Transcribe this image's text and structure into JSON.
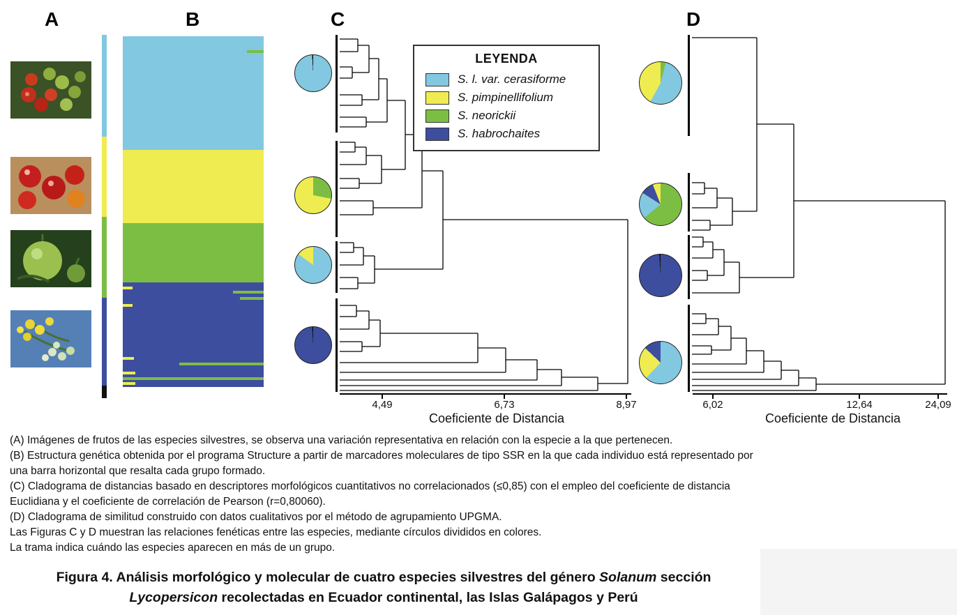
{
  "panels": {
    "a": "A",
    "b": "B",
    "c": "C",
    "d": "D"
  },
  "colors": {
    "cerasiforme": "#82C8E0",
    "pimpinellifolium": "#EFEC51",
    "neorickii": "#7CBE44",
    "habrochaites": "#3E4E9E",
    "bracket": "#111111"
  },
  "photos": [
    {
      "name": "cherry-tomatoes-photo"
    },
    {
      "name": "red-tomatoes-photo"
    },
    {
      "name": "green-fruit-photo"
    },
    {
      "name": "yellow-flowers-photo"
    }
  ],
  "strip": {
    "segments": [
      {
        "name": "cerasiforme-range",
        "color_key": "cerasiforme",
        "height_pct": 28.0
      },
      {
        "name": "pimpinellifolium-range",
        "color_key": "pimpinellifolium",
        "height_pct": 22.1
      },
      {
        "name": "neorickii-range",
        "color_key": "neorickii",
        "height_pct": 22.3
      },
      {
        "name": "habrochaites-range",
        "color_key": "habrochaites",
        "height_pct": 24.2
      },
      {
        "name": "end-cap",
        "color_key": "bracket",
        "height_pct": 3.4
      }
    ]
  },
  "legend": {
    "title": "LEYENDA",
    "entries": [
      {
        "species": "cerasiforme",
        "label": "S. l. var. cerasiforme"
      },
      {
        "species": "pimpinellifolium",
        "label": "S. pimpinellifolium"
      },
      {
        "species": "neorickii",
        "label": "S. neorickii"
      },
      {
        "species": "habrochaites",
        "label": "S. habrochaites"
      }
    ]
  },
  "chart_data": [
    {
      "type": "bar",
      "panel": "B",
      "subtype": "structure-ancestry-plot",
      "description": "Estructura genetica (programa Structure, marcadores SSR); cada individuo es una barra horizontal coloreada por grupo",
      "groups": [
        {
          "name": "S. l. var. cerasiforme",
          "color_key": "cerasiforme",
          "height_pct": 32.4
        },
        {
          "name": "S. pimpinellifolium",
          "color_key": "pimpinellifolium",
          "height_pct": 20.9
        },
        {
          "name": "S. neorickii",
          "color_key": "neorickii",
          "height_pct": 16.9
        },
        {
          "name": "S. habrochaites",
          "color_key": "habrochaites",
          "height_pct": 29.8
        }
      ],
      "admixture_marks": [
        {
          "top_pct": 4.0,
          "left_pct": 88,
          "width_pct": 12,
          "color_key": "neorickii"
        },
        {
          "top_pct": 71.3,
          "left_pct": 0,
          "width_pct": 7,
          "color_key": "pimpinellifolium"
        },
        {
          "top_pct": 72.5,
          "left_pct": 78,
          "width_pct": 22,
          "color_key": "neorickii"
        },
        {
          "top_pct": 74.3,
          "left_pct": 83,
          "width_pct": 17,
          "color_key": "neorickii"
        },
        {
          "top_pct": 76.3,
          "left_pct": 0,
          "width_pct": 7,
          "color_key": "pimpinellifolium"
        },
        {
          "top_pct": 91.5,
          "left_pct": 0,
          "width_pct": 8,
          "color_key": "pimpinellifolium"
        },
        {
          "top_pct": 93.0,
          "left_pct": 40,
          "width_pct": 60,
          "color_key": "neorickii"
        },
        {
          "top_pct": 95.6,
          "left_pct": 0,
          "width_pct": 9,
          "color_key": "pimpinellifolium"
        },
        {
          "top_pct": 97.2,
          "left_pct": 0,
          "width_pct": 100,
          "color_key": "neorickii"
        },
        {
          "top_pct": 98.7,
          "left_pct": 0,
          "width_pct": 9,
          "color_key": "pimpinellifolium"
        }
      ]
    },
    {
      "type": "dendrogram",
      "panel": "C",
      "title": "Cladograma de distancias (descriptores morfologicos cuantitativos)",
      "xlabel": "Coeficiente de Distancia",
      "ticks": [
        "4,49",
        "6,73",
        "8,97"
      ],
      "axis_values": [
        4.49,
        6.73,
        8.97
      ],
      "pies": [
        {
          "cluster": "grupo S. l. var. cerasiforme",
          "slices": [
            {
              "color_key": "cerasiforme",
              "value": 99
            },
            {
              "color_key": "bracket",
              "value": 1
            }
          ]
        },
        {
          "cluster": "grupo S. pimpinellifolium",
          "slices": [
            {
              "color_key": "neorickii",
              "value": 28
            },
            {
              "color_key": "pimpinellifolium",
              "value": 72
            }
          ]
        },
        {
          "cluster": "grupo S. neorickii",
          "slices": [
            {
              "color_key": "cerasiforme",
              "value": 85
            },
            {
              "color_key": "pimpinellifolium",
              "value": 15
            }
          ]
        },
        {
          "cluster": "grupo S. habrochaites",
          "slices": [
            {
              "color_key": "habrochaites",
              "value": 99
            },
            {
              "color_key": "bracket",
              "value": 1
            }
          ]
        }
      ]
    },
    {
      "type": "dendrogram",
      "panel": "D",
      "title": "Cladograma de similitud (datos cualitativos, UPGMA)",
      "xlabel": "Coeficiente de Distancia",
      "ticks": [
        "6,02",
        "12,64",
        "24,09"
      ],
      "axis_values": [
        6.02,
        12.64,
        24.09
      ],
      "pies": [
        {
          "cluster": "grupo 1",
          "slices": [
            {
              "color_key": "neorickii",
              "value": 4
            },
            {
              "color_key": "cerasiforme",
              "value": 54
            },
            {
              "color_key": "pimpinellifolium",
              "value": 42
            }
          ]
        },
        {
          "cluster": "grupo 2",
          "slices": [
            {
              "color_key": "neorickii",
              "value": 64
            },
            {
              "color_key": "cerasiforme",
              "value": 20
            },
            {
              "color_key": "habrochaites",
              "value": 10
            },
            {
              "color_key": "pimpinellifolium",
              "value": 6
            }
          ]
        },
        {
          "cluster": "grupo 3",
          "slices": [
            {
              "color_key": "habrochaites",
              "value": 99
            },
            {
              "color_key": "bracket",
              "value": 1
            }
          ]
        },
        {
          "cluster": "grupo 4",
          "slices": [
            {
              "color_key": "cerasiforme",
              "value": 62
            },
            {
              "color_key": "pimpinellifolium",
              "value": 25
            },
            {
              "color_key": "habrochaites",
              "value": 13
            }
          ]
        }
      ]
    }
  ],
  "captions": [
    "(A) Imágenes de frutos de las especies silvestres, se observa una variación representativa en relación con la especie a la que pertenecen.",
    "(B) Estructura genética obtenida por el programa Structure a partir de marcadores moleculares de tipo SSR en la que cada individuo está representado por una barra horizontal que resalta cada grupo formado.",
    "(C) Cladograma de distancias basado en descriptores morfológicos cuantitativos no correlacionados (≤0,85) con el empleo del coeficiente de distancia Euclidiana y el coeficiente de correlación de Pearson (r=0,80060).",
    "(D) Cladograma de similitud construido con datos cualitativos por el método de agrupamiento UPGMA.",
    "Las Figuras C y D muestran las relaciones fenéticas entre las especies, mediante círculos divididos en colores.",
    "La trama indica cuándo las especies aparecen en más de un grupo."
  ],
  "figura": {
    "label": "Figura 4.",
    "part1": " Análisis morfológico y molecular de cuatro especies silvestres del género ",
    "italic1": "Solanum",
    "part2": " sección",
    "italic2": "Lycopersicon",
    "part3": " recolectadas en Ecuador continental, las Islas Galápagos y Perú"
  }
}
